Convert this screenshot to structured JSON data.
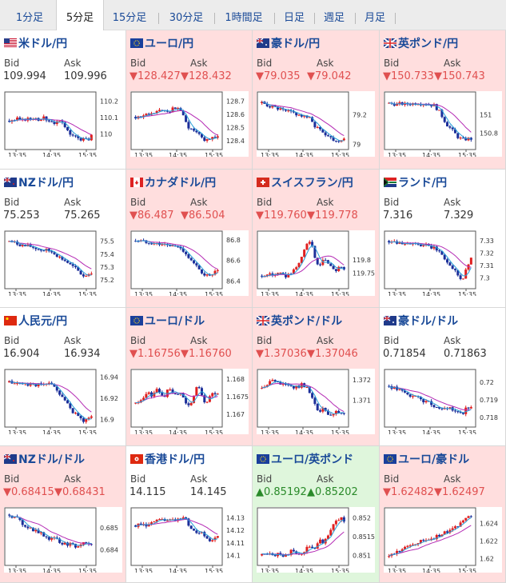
{
  "tabs": [
    {
      "label": "1分足",
      "active": false
    },
    {
      "label": "5分足",
      "active": true
    },
    {
      "label": "15分足",
      "active": false
    },
    {
      "label": "30分足",
      "active": false
    },
    {
      "label": "1時間足",
      "active": false
    },
    {
      "label": "日足",
      "active": false
    },
    {
      "label": "週足",
      "active": false
    },
    {
      "label": "月足",
      "active": false
    }
  ],
  "bid_label": "Bid",
  "ask_label": "Ask",
  "time_ticks": [
    "13:35",
    "14:35",
    "15:35"
  ],
  "colors": {
    "up_candle": "#e02020",
    "down_candle": "#1c2f9a",
    "ma_short": "#28a0d8",
    "ma_long": "#b42ab4",
    "panel_down": "#ffdede",
    "panel_up": "#dff6dc"
  },
  "pairs": [
    {
      "title": "米ドル/円",
      "flag": "us-flag-icon",
      "status": "neutral",
      "bid": "109.994",
      "ask": "109.996",
      "chart_data": {
        "type": "candlestick",
        "y_ticks": [
          "110.2",
          "110.1",
          "110"
        ],
        "ylim": [
          109.92,
          110.24
        ],
        "path": [
          110.08,
          110.08,
          110.09,
          110.08,
          110.09,
          110.09,
          110.1,
          110.09,
          110.1,
          110.09,
          110.08,
          110.07,
          110.07,
          110.06,
          110.04,
          110.0,
          109.98,
          109.97,
          109.97,
          109.96,
          109.99
        ]
      }
    },
    {
      "title": "ユーロ/円",
      "flag": "eu-flag-icon",
      "status": "down",
      "bid": "128.427",
      "ask": "128.432",
      "chart_data": {
        "type": "candlestick",
        "y_ticks": [
          "128.7",
          "128.6",
          "128.5",
          "128.4"
        ],
        "ylim": [
          128.35,
          128.75
        ],
        "path": [
          128.58,
          128.58,
          128.59,
          128.6,
          128.6,
          128.62,
          128.62,
          128.63,
          128.62,
          128.64,
          128.65,
          128.63,
          128.55,
          128.5,
          128.48,
          128.47,
          128.44,
          128.4,
          128.42,
          128.41,
          128.43
        ]
      }
    },
    {
      "title": "豪ドル/円",
      "flag": "au-flag-icon",
      "status": "down",
      "bid": "79.035",
      "ask": "79.042",
      "chart_data": {
        "type": "candlestick",
        "y_ticks": [
          "79.2",
          "79"
        ],
        "ylim": [
          78.98,
          79.34
        ],
        "path": [
          79.28,
          79.27,
          79.26,
          79.25,
          79.24,
          79.23,
          79.22,
          79.22,
          79.21,
          79.2,
          79.19,
          79.18,
          79.17,
          79.12,
          79.1,
          79.08,
          79.06,
          79.04,
          79.02,
          79.03,
          79.04
        ]
      }
    },
    {
      "title": "英ポンド/円",
      "flag": "uk-flag-icon",
      "status": "down",
      "bid": "150.733",
      "ask": "150.743",
      "chart_data": {
        "type": "candlestick",
        "y_ticks": [
          "151",
          "150.8"
        ],
        "ylim": [
          150.65,
          151.22
        ],
        "path": [
          151.12,
          151.12,
          151.11,
          151.12,
          151.11,
          151.12,
          151.12,
          151.13,
          151.12,
          151.12,
          151.11,
          151.1,
          151.05,
          150.98,
          150.9,
          150.85,
          150.8,
          150.75,
          150.73,
          150.74,
          150.74
        ]
      }
    },
    {
      "title": "NZドル/円",
      "flag": "nz-flag-icon",
      "status": "neutral",
      "bid": "75.253",
      "ask": "75.265",
      "chart_data": {
        "type": "candlestick",
        "y_ticks": [
          "75.5",
          "75.4",
          "75.3",
          "75.2"
        ],
        "ylim": [
          75.15,
          75.56
        ],
        "path": [
          75.5,
          75.49,
          75.48,
          75.47,
          75.46,
          75.46,
          75.45,
          75.44,
          75.43,
          75.43,
          75.42,
          75.41,
          75.38,
          75.36,
          75.34,
          75.31,
          75.29,
          75.26,
          75.23,
          75.24,
          75.26
        ]
      }
    },
    {
      "title": "カナダドル/円",
      "flag": "ca-flag-icon",
      "status": "down",
      "bid": "86.487",
      "ask": "86.504",
      "chart_data": {
        "type": "candlestick",
        "y_ticks": [
          "86.8",
          "86.6",
          "86.4"
        ],
        "ylim": [
          86.35,
          86.86
        ],
        "path": [
          86.79,
          86.79,
          86.78,
          86.78,
          86.77,
          86.76,
          86.76,
          86.75,
          86.74,
          86.74,
          86.73,
          86.72,
          86.68,
          86.62,
          86.57,
          86.53,
          86.49,
          86.46,
          86.44,
          86.48,
          86.49
        ]
      }
    },
    {
      "title": "スイスフラン/円",
      "flag": "ch-flag-icon",
      "status": "down",
      "bid": "119.760",
      "ask": "119.778",
      "chart_data": {
        "type": "candlestick",
        "y_ticks": [
          "119.8",
          "119.75"
        ],
        "ylim": [
          119.7,
          119.9
        ],
        "path": [
          119.74,
          119.74,
          119.75,
          119.74,
          119.75,
          119.74,
          119.74,
          119.75,
          119.76,
          119.79,
          119.82,
          119.86,
          119.88,
          119.8,
          119.78,
          119.81,
          119.79,
          119.77,
          119.76,
          119.78,
          119.76
        ]
      }
    },
    {
      "title": "ランド/円",
      "flag": "za-flag-icon",
      "status": "neutral",
      "bid": "7.316",
      "ask": "7.329",
      "chart_data": {
        "type": "candlestick",
        "y_ticks": [
          "7.33",
          "7.32",
          "7.31",
          "7.3"
        ],
        "ylim": [
          7.293,
          7.336
        ],
        "path": [
          7.33,
          7.33,
          7.329,
          7.329,
          7.328,
          7.328,
          7.327,
          7.327,
          7.326,
          7.326,
          7.325,
          7.324,
          7.322,
          7.318,
          7.313,
          7.31,
          7.306,
          7.302,
          7.298,
          7.31,
          7.316
        ]
      }
    },
    {
      "title": "人民元/円",
      "flag": "cn-flag-icon",
      "status": "neutral",
      "bid": "16.904",
      "ask": "16.934",
      "chart_data": {
        "type": "candlestick",
        "y_ticks": [
          "16.94",
          "16.92",
          "16.9"
        ],
        "ylim": [
          16.895,
          16.945
        ],
        "path": [
          16.935,
          16.935,
          16.934,
          16.934,
          16.933,
          16.934,
          16.933,
          16.933,
          16.932,
          16.933,
          16.934,
          16.932,
          16.925,
          16.92,
          16.915,
          16.91,
          16.905,
          16.902,
          16.899,
          16.9,
          16.903
        ]
      }
    },
    {
      "title": "ユーロ/ドル",
      "flag": "eu-flag-icon",
      "status": "down",
      "bid": "1.16756",
      "ask": "1.16760",
      "chart_data": {
        "type": "candlestick",
        "y_ticks": [
          "1.168",
          "1.1675",
          "1.167"
        ],
        "ylim": [
          1.1667,
          1.1682
        ],
        "path": [
          1.1673,
          1.1674,
          1.1675,
          1.1676,
          1.1675,
          1.1677,
          1.1676,
          1.1675,
          1.1677,
          1.1676,
          1.1675,
          1.1676,
          1.1674,
          1.1672,
          1.1675,
          1.1678,
          1.1676,
          1.1673,
          1.1675,
          1.1676,
          1.1676
        ]
      }
    },
    {
      "title": "英ポンド/ドル",
      "flag": "uk-flag-icon",
      "status": "down",
      "bid": "1.37036",
      "ask": "1.37046",
      "chart_data": {
        "type": "candlestick",
        "y_ticks": [
          "1.372",
          "1.371"
        ],
        "ylim": [
          1.3698,
          1.3724
        ],
        "path": [
          1.3716,
          1.3718,
          1.3719,
          1.372,
          1.3718,
          1.3719,
          1.3718,
          1.3717,
          1.3716,
          1.3717,
          1.3718,
          1.3716,
          1.3712,
          1.3707,
          1.3704,
          1.3706,
          1.3703,
          1.3702,
          1.3704,
          1.3703,
          1.3704
        ]
      }
    },
    {
      "title": "豪ドル/ドル",
      "flag": "au-flag-icon",
      "status": "neutral",
      "bid": "0.71854",
      "ask": "0.71863",
      "chart_data": {
        "type": "candlestick",
        "y_ticks": [
          "0.72",
          "0.719",
          "0.718"
        ],
        "ylim": [
          0.7176,
          0.7206
        ],
        "path": [
          0.7198,
          0.7197,
          0.7196,
          0.7195,
          0.7194,
          0.7192,
          0.7193,
          0.7191,
          0.719,
          0.7189,
          0.7188,
          0.7187,
          0.7185,
          0.7186,
          0.7184,
          0.7185,
          0.7183,
          0.7184,
          0.7182,
          0.7186,
          0.7185
        ]
      }
    },
    {
      "title": "NZドル/ドル",
      "flag": "nz-flag-icon",
      "status": "down",
      "bid": "0.68415",
      "ask": "0.68431",
      "chart_data": {
        "type": "candlestick",
        "y_ticks": [
          "0.685",
          "0.684"
        ],
        "ylim": [
          0.6834,
          0.6858
        ],
        "path": [
          0.6856,
          0.6855,
          0.6854,
          0.6852,
          0.6851,
          0.685,
          0.6849,
          0.6848,
          0.6847,
          0.6846,
          0.6845,
          0.6846,
          0.6844,
          0.6843,
          0.6842,
          0.6844,
          0.6842,
          0.6841,
          0.6843,
          0.6842,
          0.6842
        ]
      }
    },
    {
      "title": "香港ドル/円",
      "flag": "hk-flag-icon",
      "status": "neutral",
      "bid": "14.115",
      "ask": "14.145",
      "chart_data": {
        "type": "candlestick",
        "y_ticks": [
          "14.13",
          "14.12",
          "14.11",
          "14.1"
        ],
        "ylim": [
          14.094,
          14.136
        ],
        "path": [
          14.124,
          14.124,
          14.125,
          14.124,
          14.126,
          14.127,
          14.128,
          14.127,
          14.129,
          14.13,
          14.128,
          14.129,
          14.13,
          14.124,
          14.12,
          14.118,
          14.12,
          14.115,
          14.112,
          14.114,
          14.115
        ]
      }
    },
    {
      "title": "ユーロ/英ポンド",
      "flag": "eu-flag-icon",
      "status": "up",
      "bid": "0.85192",
      "ask": "0.85202",
      "chart_data": {
        "type": "candlestick",
        "y_ticks": [
          "0.852",
          "0.8515",
          "0.851"
        ],
        "ylim": [
          0.8508,
          0.8522
        ],
        "path": [
          0.851,
          0.851,
          0.8511,
          0.851,
          0.8511,
          0.851,
          0.851,
          0.8511,
          0.8511,
          0.851,
          0.8511,
          0.8512,
          0.8512,
          0.8512,
          0.8514,
          0.8513,
          0.8515,
          0.8517,
          0.8519,
          0.852,
          0.8519
        ]
      }
    },
    {
      "title": "ユーロ/豪ドル",
      "flag": "eu-flag-icon",
      "status": "down",
      "bid": "1.62482",
      "ask": "1.62497",
      "chart_data": {
        "type": "candlestick",
        "y_ticks": [
          "1.624",
          "1.622",
          "1.62"
        ],
        "ylim": [
          1.6195,
          1.6255
        ],
        "path": [
          1.6202,
          1.6205,
          1.6208,
          1.621,
          1.6212,
          1.6215,
          1.6216,
          1.6218,
          1.622,
          1.6221,
          1.6223,
          1.6224,
          1.6226,
          1.6228,
          1.623,
          1.6232,
          1.6235,
          1.6238,
          1.6245,
          1.6248,
          1.6248
        ]
      }
    }
  ]
}
